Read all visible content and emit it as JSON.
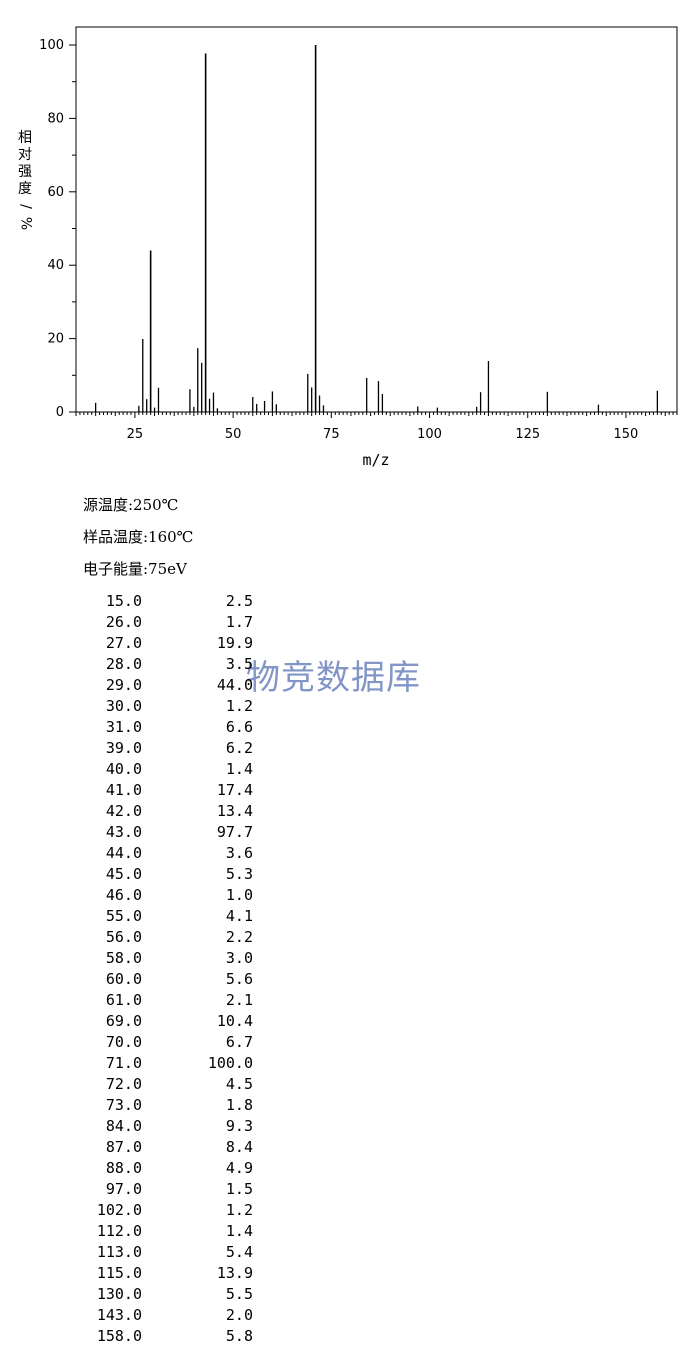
{
  "chart_data": {
    "type": "bar",
    "xlabel": "m/z",
    "ylabel": "相对强度/%",
    "xlim": [
      10,
      163
    ],
    "ylim": [
      0,
      100
    ],
    "x_ticks": [
      25,
      50,
      75,
      100,
      125,
      150
    ],
    "y_ticks": [
      0,
      20,
      40,
      60,
      80,
      100
    ],
    "grid": false,
    "peaks": [
      {
        "mz": "15.0",
        "intensity": "2.5"
      },
      {
        "mz": "26.0",
        "intensity": "1.7"
      },
      {
        "mz": "27.0",
        "intensity": "19.9"
      },
      {
        "mz": "28.0",
        "intensity": "3.5"
      },
      {
        "mz": "29.0",
        "intensity": "44.0"
      },
      {
        "mz": "30.0",
        "intensity": "1.2"
      },
      {
        "mz": "31.0",
        "intensity": "6.6"
      },
      {
        "mz": "39.0",
        "intensity": "6.2"
      },
      {
        "mz": "40.0",
        "intensity": "1.4"
      },
      {
        "mz": "41.0",
        "intensity": "17.4"
      },
      {
        "mz": "42.0",
        "intensity": "13.4"
      },
      {
        "mz": "43.0",
        "intensity": "97.7"
      },
      {
        "mz": "44.0",
        "intensity": "3.6"
      },
      {
        "mz": "45.0",
        "intensity": "5.3"
      },
      {
        "mz": "46.0",
        "intensity": "1.0"
      },
      {
        "mz": "55.0",
        "intensity": "4.1"
      },
      {
        "mz": "56.0",
        "intensity": "2.2"
      },
      {
        "mz": "58.0",
        "intensity": "3.0"
      },
      {
        "mz": "60.0",
        "intensity": "5.6"
      },
      {
        "mz": "61.0",
        "intensity": "2.1"
      },
      {
        "mz": "69.0",
        "intensity": "10.4"
      },
      {
        "mz": "70.0",
        "intensity": "6.7"
      },
      {
        "mz": "71.0",
        "intensity": "100.0"
      },
      {
        "mz": "72.0",
        "intensity": "4.5"
      },
      {
        "mz": "73.0",
        "intensity": "1.8"
      },
      {
        "mz": "84.0",
        "intensity": "9.3"
      },
      {
        "mz": "87.0",
        "intensity": "8.4"
      },
      {
        "mz": "88.0",
        "intensity": "4.9"
      },
      {
        "mz": "97.0",
        "intensity": "1.5"
      },
      {
        "mz": "102.0",
        "intensity": "1.2"
      },
      {
        "mz": "112.0",
        "intensity": "1.4"
      },
      {
        "mz": "113.0",
        "intensity": "5.4"
      },
      {
        "mz": "115.0",
        "intensity": "13.9"
      },
      {
        "mz": "130.0",
        "intensity": "5.5"
      },
      {
        "mz": "143.0",
        "intensity": "2.0"
      },
      {
        "mz": "158.0",
        "intensity": "5.8"
      }
    ]
  },
  "conditions": [
    "源温度:250℃",
    "样品温度:160℃",
    "电子能量:75eV"
  ],
  "watermark": "物竞数据库"
}
